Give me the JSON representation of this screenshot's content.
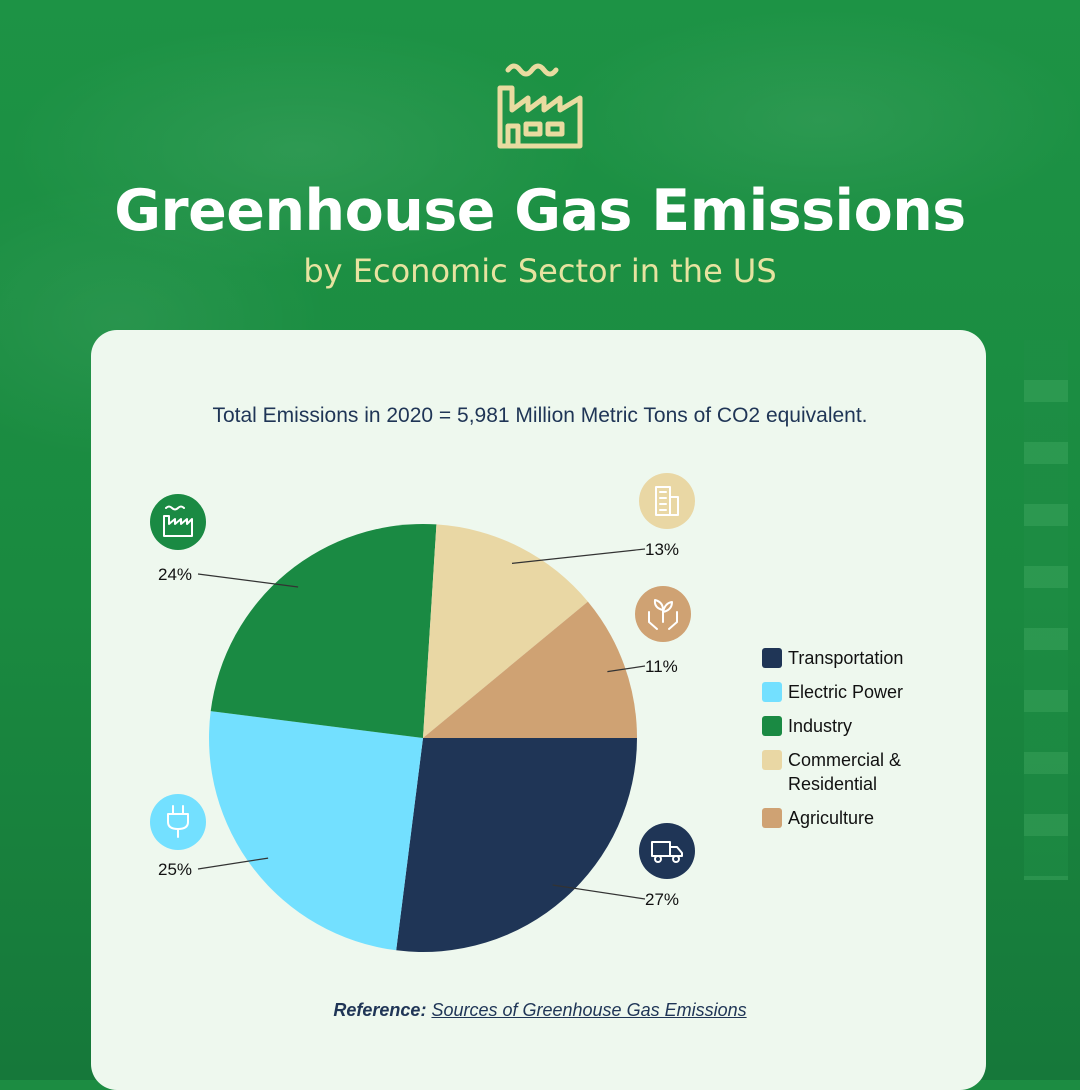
{
  "title": "Greenhouse Gas Emissions",
  "subtitle": "by Economic Sector in the US",
  "total_text": "Total Emissions in 2020 = 5,981 Million Metric Tons of CO2 equivalent.",
  "reference": {
    "label": "Reference:",
    "link_text": "Sources of Greenhouse Gas Emissions"
  },
  "icons": {
    "header": "factory-icon",
    "transportation": "truck-icon",
    "electric_power": "plug-icon",
    "industry": "factory-icon",
    "commercial_residential": "building-icon",
    "agriculture": "plant-hands-icon"
  },
  "colors": {
    "background": "#1c8c42",
    "card": "#eef8ee",
    "title": "#ffffff",
    "subtitle": "#e7e3a0"
  },
  "chart_data": {
    "type": "pie",
    "categories": [
      "Transportation",
      "Electric Power",
      "Industry",
      "Commercial & Residential",
      "Agriculture"
    ],
    "values": [
      27,
      25,
      24,
      13,
      11
    ],
    "labels": [
      "27%",
      "25%",
      "24%",
      "13%",
      "11%"
    ],
    "colors": [
      "#1f3556",
      "#73e0ff",
      "#1a8a43",
      "#e9d7a4",
      "#cfa273"
    ],
    "legend_position": "right"
  }
}
